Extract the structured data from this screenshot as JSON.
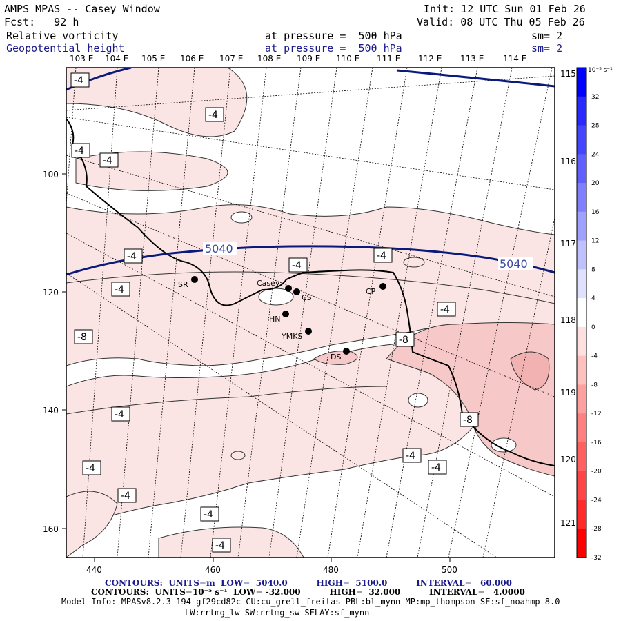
{
  "header": {
    "title": "AMPS MPAS -- Casey Window",
    "init": "Init: 12 UTC Sun 01 Feb 26",
    "fcst": "Fcst:   92 h",
    "valid": "Valid: 08 UTC Thu 05 Feb 26",
    "field1_name": "Relative vorticity",
    "field1_level": "at pressure =  500 hPa",
    "field1_sm": "sm= 2",
    "field2_name": "Geopotential height",
    "field2_level": "at pressure =  500 hPa",
    "field2_sm": "sm= 2"
  },
  "map": {
    "top_longitudes": [
      "103 E",
      "104 E",
      "105 E",
      "106 E",
      "107 E",
      "108 E",
      "109 E",
      "110 E",
      "111 E",
      "112 E",
      "113 E",
      "114 E"
    ],
    "right_longitudes": [
      "115 E",
      "116 E",
      "117 E",
      "118 E",
      "119 E",
      "120 E",
      "121 E"
    ],
    "left_ticks": [
      "100",
      "120",
      "140",
      "160"
    ],
    "bottom_ticks": [
      "440",
      "460",
      "480",
      "500"
    ],
    "height_labels": [
      "5040",
      "5040"
    ],
    "vort_labels": [
      "-4",
      "-4",
      "-4",
      "-4",
      "-4",
      "-4",
      "-4",
      "-4",
      "-4",
      "-4",
      "-8",
      "-8",
      "-4",
      "-4",
      "-4",
      "-4",
      "-4",
      "-4",
      "-8",
      "-4",
      "-4",
      "-4"
    ],
    "stations": [
      {
        "name": "SR"
      },
      {
        "name": "Casey"
      },
      {
        "name": "CS"
      },
      {
        "name": "HN"
      },
      {
        "name": "YMKS"
      },
      {
        "name": "DS"
      },
      {
        "name": "CP"
      }
    ]
  },
  "colorbar": {
    "unit": "10⁻⁵ s⁻¹",
    "labels": [
      "32",
      "28",
      "24",
      "20",
      "16",
      "12",
      "8",
      "4",
      "0",
      "-4",
      "-8",
      "-12",
      "-16",
      "-20",
      "-24",
      "-28",
      "-32"
    ],
    "colors": [
      "#0000ff",
      "#2a2aff",
      "#4545ff",
      "#6060ff",
      "#8080ff",
      "#a0a0ff",
      "#c0c0ff",
      "#e0e0ff",
      "#ffffff",
      "#ffe0e0",
      "#ffc0c0",
      "#ffa0a0",
      "#ff8080",
      "#ff6060",
      "#ff4545",
      "#ff2a2a",
      "#ff0000"
    ]
  },
  "footer": {
    "contours1": "CONTOURS:  UNITS=m  LOW=  5040.0          HIGH=  5100.0          INTERVAL=   60.000",
    "contours2": "CONTOURS:  UNITS=10⁻⁵ s⁻¹  LOW= -32.000          HIGH=  32.000          INTERVAL=   4.0000",
    "model_info": "Model Info: MPASv8.2.3-194-gf29cd82c CU:cu_grell_freitas PBL:bl_mynn MP:mp_thompson SF:sf_noahmp 8.0",
    "model_info2": "LW:rrtmg_lw SW:rrtmg_sw SFLAY:sf_mynn"
  }
}
